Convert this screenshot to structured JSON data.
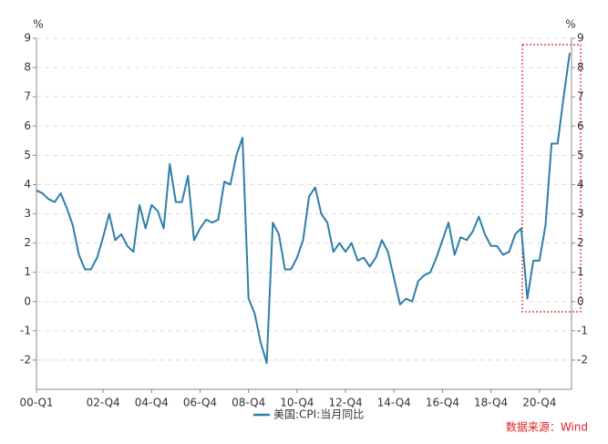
{
  "chart_data": {
    "type": "line",
    "y_unit": "%",
    "y2_unit": "%",
    "x": [
      0,
      1,
      2,
      3,
      4,
      5,
      6,
      7,
      8,
      9,
      10,
      11,
      12,
      13,
      14,
      15,
      16,
      17,
      18,
      19,
      20,
      21,
      22,
      23,
      24,
      25,
      26,
      27,
      28,
      29,
      30,
      31,
      32,
      33,
      34,
      35,
      36,
      37,
      38,
      39,
      40,
      41,
      42,
      43,
      44,
      45,
      46,
      47,
      48,
      49,
      50,
      51,
      52,
      53,
      54,
      55,
      56,
      57,
      58,
      59,
      60,
      61,
      62,
      63,
      64,
      65,
      66,
      67,
      68,
      69,
      70,
      71,
      72,
      73,
      74,
      75,
      76,
      77,
      78,
      79,
      80,
      81,
      82,
      83,
      84,
      85,
      86,
      87,
      88
    ],
    "series": [
      {
        "name": "美国:CPI:当月同比",
        "color": "#2e7fa8",
        "values": [
          3.8,
          3.7,
          3.5,
          3.4,
          3.7,
          3.2,
          2.6,
          1.6,
          1.1,
          1.1,
          1.5,
          2.2,
          3.0,
          2.1,
          2.3,
          1.9,
          1.7,
          3.3,
          2.5,
          3.3,
          3.1,
          2.5,
          4.7,
          3.4,
          3.4,
          4.3,
          2.1,
          2.5,
          2.8,
          2.7,
          2.8,
          4.1,
          4.0,
          5.0,
          5.6,
          0.1,
          -0.4,
          -1.4,
          -2.1,
          2.7,
          2.3,
          1.1,
          1.1,
          1.5,
          2.1,
          3.6,
          3.9,
          3.0,
          2.7,
          1.7,
          2.0,
          1.7,
          2.0,
          1.4,
          1.5,
          1.2,
          1.5,
          2.1,
          1.7,
          0.8,
          -0.1,
          0.1,
          0.0,
          0.7,
          0.9,
          1.0,
          1.5,
          2.1,
          2.7,
          1.6,
          2.2,
          2.1,
          2.4,
          2.9,
          2.3,
          1.9,
          1.9,
          1.6,
          1.7,
          2.3,
          2.5,
          0.1,
          1.4,
          1.4,
          2.6,
          5.4,
          5.4,
          7.0,
          8.5
        ]
      }
    ],
    "xlim": [
      0,
      88.3
    ],
    "xticks": [
      {
        "value": 0,
        "label": "00-Q1"
      },
      {
        "value": 11,
        "label": "02-Q4"
      },
      {
        "value": 19,
        "label": "04-Q4"
      },
      {
        "value": 27,
        "label": "06-Q4"
      },
      {
        "value": 35,
        "label": "08-Q4"
      },
      {
        "value": 43,
        "label": "10-Q4"
      },
      {
        "value": 51,
        "label": "12-Q4"
      },
      {
        "value": 59,
        "label": "14-Q4"
      },
      {
        "value": 67,
        "label": "16-Q4"
      },
      {
        "value": 75,
        "label": "18-Q4"
      },
      {
        "value": 83,
        "label": "20-Q4"
      }
    ],
    "ylim": [
      -3,
      9
    ],
    "yticks": [
      -2,
      -1,
      0,
      1,
      2,
      3,
      4,
      5,
      6,
      7,
      8,
      9
    ],
    "y2lim": [
      -3,
      9
    ],
    "y2ticks": [
      -2,
      -1,
      0,
      1,
      2,
      3,
      4,
      5,
      6,
      7,
      8,
      9
    ],
    "grid": true,
    "legend": "bottom",
    "source": "数据来源：Wind"
  }
}
